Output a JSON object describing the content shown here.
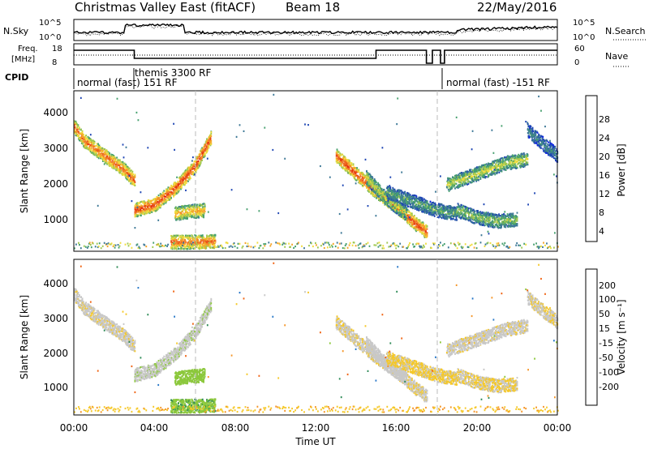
{
  "header": {
    "title": "Christmas Valley East (fitACF)",
    "beam": "Beam 18",
    "date": "22/May/2016"
  },
  "top_panels": {
    "nsky_label": "N.Sky",
    "nsearch_label": "N.Search",
    "freq_label": "Freq.",
    "freq_unit": "[MHz]",
    "nave_label": "Nave",
    "cpid_label": "CPID",
    "noise_left_ticks": [
      "10^5",
      "10^0"
    ],
    "noise_right_ticks": [
      "10^5",
      "10^0"
    ],
    "freq_left_ticks": [
      "18",
      "8"
    ],
    "nave_right_ticks": [
      "60",
      "0"
    ],
    "cpid_segments": [
      "normal (fast) 151 RF",
      "themis 3300 RF",
      "normal (fast) -151 RF"
    ]
  },
  "colorbars": {
    "power": {
      "label": "Power [dB]",
      "ticks": [
        "28",
        "24",
        "20",
        "16",
        "12",
        "8",
        "4"
      ],
      "colors": [
        "#0a1ee6",
        "#1e46b4",
        "#3c7896",
        "#46a06e",
        "#a0c850",
        "#f0dc3c",
        "#f5a528",
        "#f07828",
        "#e64614",
        "#e61e0a"
      ]
    },
    "velocity": {
      "label": "Velocity [m s⁻¹]",
      "ticks": [
        "200",
        "100",
        "50",
        "15",
        "-15",
        "-50",
        "-100",
        "-200"
      ],
      "colors": [
        "#2830b4",
        "#2878c8",
        "#2e8b57",
        "#8cc83c",
        "#c8c8c8",
        "#f5c828",
        "#f59628",
        "#f06414",
        "#e61e0a"
      ]
    }
  },
  "chart_data": {
    "type": "heatmap",
    "xlabel": "Time UT",
    "ylabel": "Slant Range [km]",
    "x_ticks": [
      "00:00",
      "04:00",
      "08:00",
      "12:00",
      "16:00",
      "20:00",
      "00:00"
    ],
    "xlim_hours": [
      0,
      24
    ],
    "ylim_km": [
      200,
      4600
    ],
    "y_ticks": [
      "1000",
      "2000",
      "3000",
      "4000"
    ],
    "dashed_lines_hours": [
      6,
      18
    ],
    "panels": [
      "Power",
      "Velocity"
    ],
    "echo_bands": [
      {
        "t": [
          0,
          0.5,
          1.5,
          2.5,
          3.0
        ],
        "r": [
          3600,
          3200,
          2800,
          2400,
          2100
        ],
        "power_db": 22,
        "velocity": -5
      },
      {
        "t": [
          3.0,
          4.0,
          5.0,
          6.0,
          6.8
        ],
        "r": [
          1300,
          1450,
          1900,
          2500,
          3300
        ],
        "power_db": 24,
        "velocity": 5
      },
      {
        "t": [
          5.0,
          5.5,
          6.5
        ],
        "r": [
          1200,
          1250,
          1300
        ],
        "power_db": 18,
        "velocity": 30
      },
      {
        "t": [
          4.8,
          6.0,
          7.0
        ],
        "r": [
          420,
          430,
          440
        ],
        "power_db": 22,
        "velocity": 40
      },
      {
        "t": [
          13.0,
          14.0,
          15.0,
          16.0,
          17.0,
          17.5
        ],
        "r": [
          2800,
          2300,
          1800,
          1400,
          900,
          700
        ],
        "power_db": 24,
        "velocity": -10
      },
      {
        "t": [
          14.5,
          15.5,
          16.5
        ],
        "r": [
          2200,
          1600,
          1200
        ],
        "power_db": 14,
        "velocity": 0
      },
      {
        "t": [
          15.5,
          17.0,
          18.0,
          19.0
        ],
        "r": [
          1800,
          1500,
          1300,
          1200
        ],
        "power_db": 10,
        "velocity": -20
      },
      {
        "t": [
          18.5,
          19.5,
          20.5,
          21.5,
          22.5
        ],
        "r": [
          2000,
          2200,
          2400,
          2600,
          2700
        ],
        "power_db": 14,
        "velocity": -5
      },
      {
        "t": [
          22.5,
          23.3,
          24.0
        ],
        "r": [
          3500,
          3100,
          2800
        ],
        "power_db": 8,
        "velocity": -10
      },
      {
        "t": [
          19.0,
          20.0,
          21.0,
          22.0
        ],
        "r": [
          1300,
          1100,
          1000,
          1050
        ],
        "power_db": 12,
        "velocity": -15
      }
    ]
  }
}
